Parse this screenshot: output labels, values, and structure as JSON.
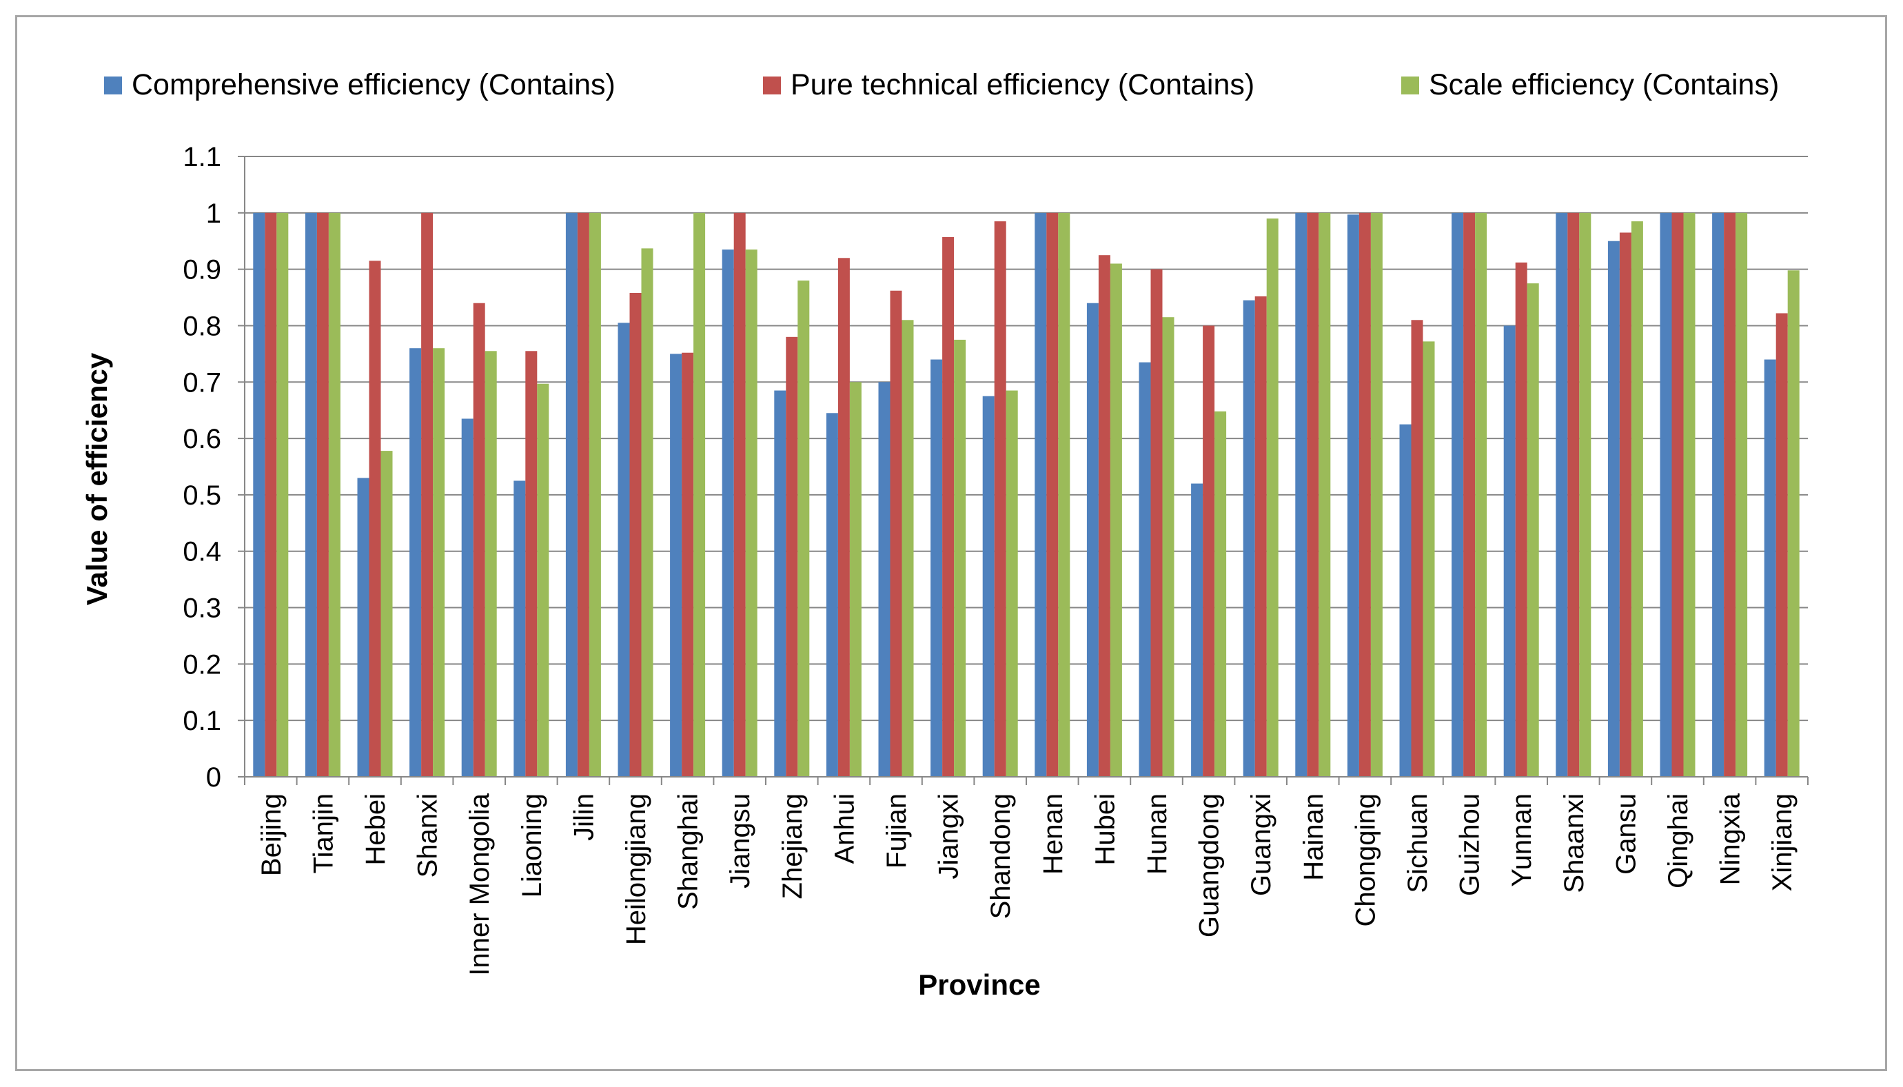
{
  "chart_data": {
    "type": "bar",
    "title": "",
    "xlabel": "Province",
    "ylabel": "Value of efficiency",
    "ylim": [
      0,
      1.1
    ],
    "yticks": [
      "0",
      "0.1",
      "0.2",
      "0.3",
      "0.4",
      "0.5",
      "0.6",
      "0.7",
      "0.8",
      "0.9",
      "1",
      "1.1"
    ],
    "grid": true,
    "legend_position": "top",
    "categories": [
      "Beijing",
      "Tianjin",
      "Hebei",
      "Shanxi",
      "Inner Mongolia",
      "Liaoning",
      "Jilin",
      "Heilongjiang",
      "Shanghai",
      "Jiangsu",
      "Zhejiang",
      "Anhui",
      "Fujian",
      "Jiangxi",
      "Shandong",
      "Henan",
      "Hubei",
      "Hunan",
      "Guangdong",
      "Guangxi",
      "Hainan",
      "Chongqing",
      "Sichuan",
      "Guizhou",
      "Yunnan",
      "Shaanxi",
      "Gansu",
      "Qinghai",
      "Ningxia",
      "Xinjiang"
    ],
    "series": [
      {
        "name": "Comprehensive efficiency (Contains)",
        "color": "#4f81bd",
        "values": [
          1,
          1,
          0.53,
          0.76,
          0.635,
          0.525,
          1,
          0.805,
          0.75,
          0.935,
          0.685,
          0.645,
          0.7,
          0.74,
          0.675,
          1,
          0.84,
          0.735,
          0.52,
          0.845,
          1,
          0.997,
          0.625,
          1,
          0.8,
          1,
          0.95,
          1,
          1,
          0.74
        ]
      },
      {
        "name": "Pure technical efficiency (Contains)",
        "color": "#c0504d",
        "values": [
          1,
          1,
          0.915,
          1,
          0.84,
          0.755,
          1,
          0.858,
          0.752,
          1,
          0.78,
          0.92,
          0.862,
          0.957,
          0.985,
          1,
          0.925,
          0.9,
          0.8,
          0.852,
          1,
          1,
          0.81,
          1,
          0.912,
          1,
          0.965,
          1,
          1,
          0.822
        ]
      },
      {
        "name": "Scale efficiency (Contains)",
        "color": "#9bbb59",
        "values": [
          1,
          1,
          0.578,
          0.76,
          0.755,
          0.697,
          1,
          0.937,
          1,
          0.935,
          0.88,
          0.7,
          0.81,
          0.775,
          0.685,
          1,
          0.91,
          0.815,
          0.648,
          0.99,
          1,
          1,
          0.772,
          1,
          0.875,
          1,
          0.985,
          1,
          1,
          0.898
        ]
      }
    ]
  }
}
